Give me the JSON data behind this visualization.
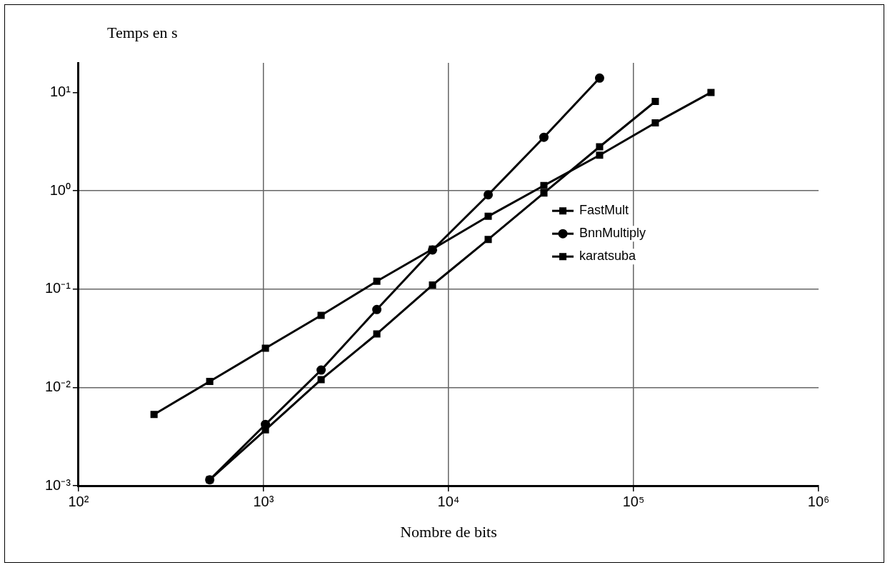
{
  "chart_data": {
    "type": "line",
    "xlabel": "Nombre de bits",
    "ylabel": "Temps en s",
    "log": "xy",
    "xlim": [
      100,
      1000000
    ],
    "xticks": [
      {
        "value": 100,
        "label": "10²"
      },
      {
        "value": 1000,
        "label": "10³"
      },
      {
        "value": 10000,
        "label": "10⁴"
      },
      {
        "value": 100000,
        "label": "10⁵"
      },
      {
        "value": 1000000,
        "label": "10⁶"
      }
    ],
    "ylim": [
      0.001,
      20
    ],
    "yticks": [
      {
        "value": 0.001,
        "label": "10⁻³"
      },
      {
        "value": 0.01,
        "label": "10⁻²"
      },
      {
        "value": 0.1,
        "label": "10⁻¹"
      },
      {
        "value": 1,
        "label": "10⁰"
      },
      {
        "value": 10,
        "label": "10¹"
      }
    ],
    "grid": true,
    "legend": "right",
    "line_style": "solid",
    "series": [
      {
        "name": "FastMult",
        "color": "#000000",
        "marker": "square",
        "x": [
          256,
          512,
          1024,
          2048,
          4096,
          8192,
          16384,
          32768,
          65536,
          131072,
          262144
        ],
        "values": [
          0.0053,
          0.0115,
          0.025,
          0.054,
          0.12,
          0.255,
          0.55,
          1.13,
          2.3,
          4.9,
          10
        ]
      },
      {
        "name": "BnnMultiply",
        "color": "#000000",
        "marker": "circle",
        "x": [
          512,
          1024,
          2048,
          4096,
          8192,
          16384,
          32768,
          65536
        ],
        "values": [
          0.00115,
          0.0042,
          0.015,
          0.062,
          0.25,
          0.91,
          3.5,
          14
        ]
      },
      {
        "name": "karatsuba",
        "color": "#000000",
        "marker": "square",
        "x": [
          512,
          1024,
          2048,
          4096,
          8192,
          16384,
          32768,
          65536,
          131072
        ],
        "values": [
          0.00115,
          0.0037,
          0.012,
          0.035,
          0.11,
          0.32,
          0.95,
          2.8,
          8.1
        ]
      }
    ]
  }
}
